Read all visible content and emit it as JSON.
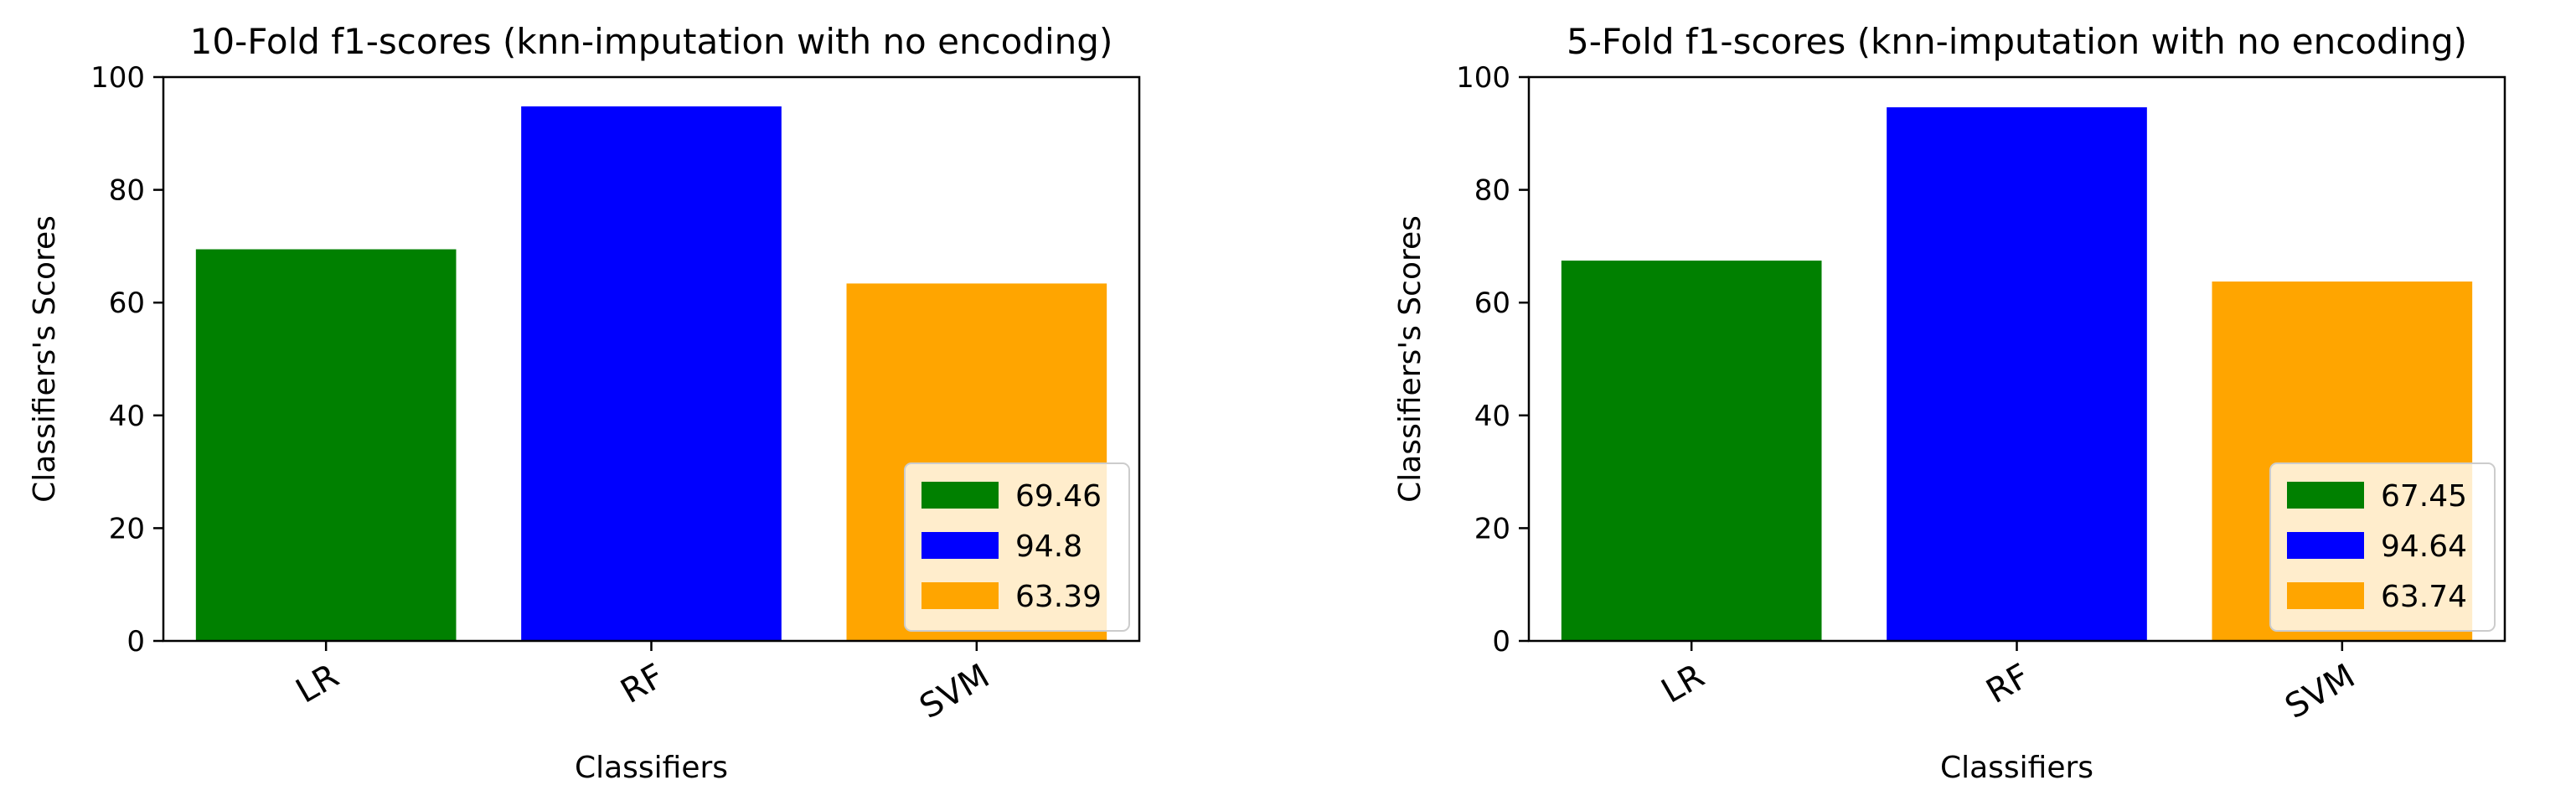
{
  "chart_data": [
    {
      "type": "bar",
      "title": "10-Fold f1-scores (knn-imputation with no encoding)",
      "xlabel": "Classifiers",
      "ylabel": "Classifiers's Scores",
      "categories": [
        "LR",
        "RF",
        "SVM"
      ],
      "values": [
        69.46,
        94.8,
        63.39
      ],
      "colors": [
        "#008000",
        "#0000ff",
        "#ffa500"
      ],
      "legend": [
        "69.46",
        "94.8",
        "63.39"
      ],
      "legend_position": "lower-right",
      "ylim": [
        0,
        100
      ],
      "yticks": [
        0,
        20,
        40,
        60,
        80,
        100
      ],
      "grid": false
    },
    {
      "type": "bar",
      "title": "5-Fold f1-scores (knn-imputation with no encoding)",
      "xlabel": "Classifiers",
      "ylabel": "Classifiers's Scores",
      "categories": [
        "LR",
        "RF",
        "SVM"
      ],
      "values": [
        67.45,
        94.64,
        63.74
      ],
      "colors": [
        "#008000",
        "#0000ff",
        "#ffa500"
      ],
      "legend": [
        "67.45",
        "94.64",
        "63.74"
      ],
      "legend_position": "lower-right",
      "ylim": [
        0,
        100
      ],
      "yticks": [
        0,
        20,
        40,
        60,
        80,
        100
      ],
      "grid": false
    }
  ]
}
